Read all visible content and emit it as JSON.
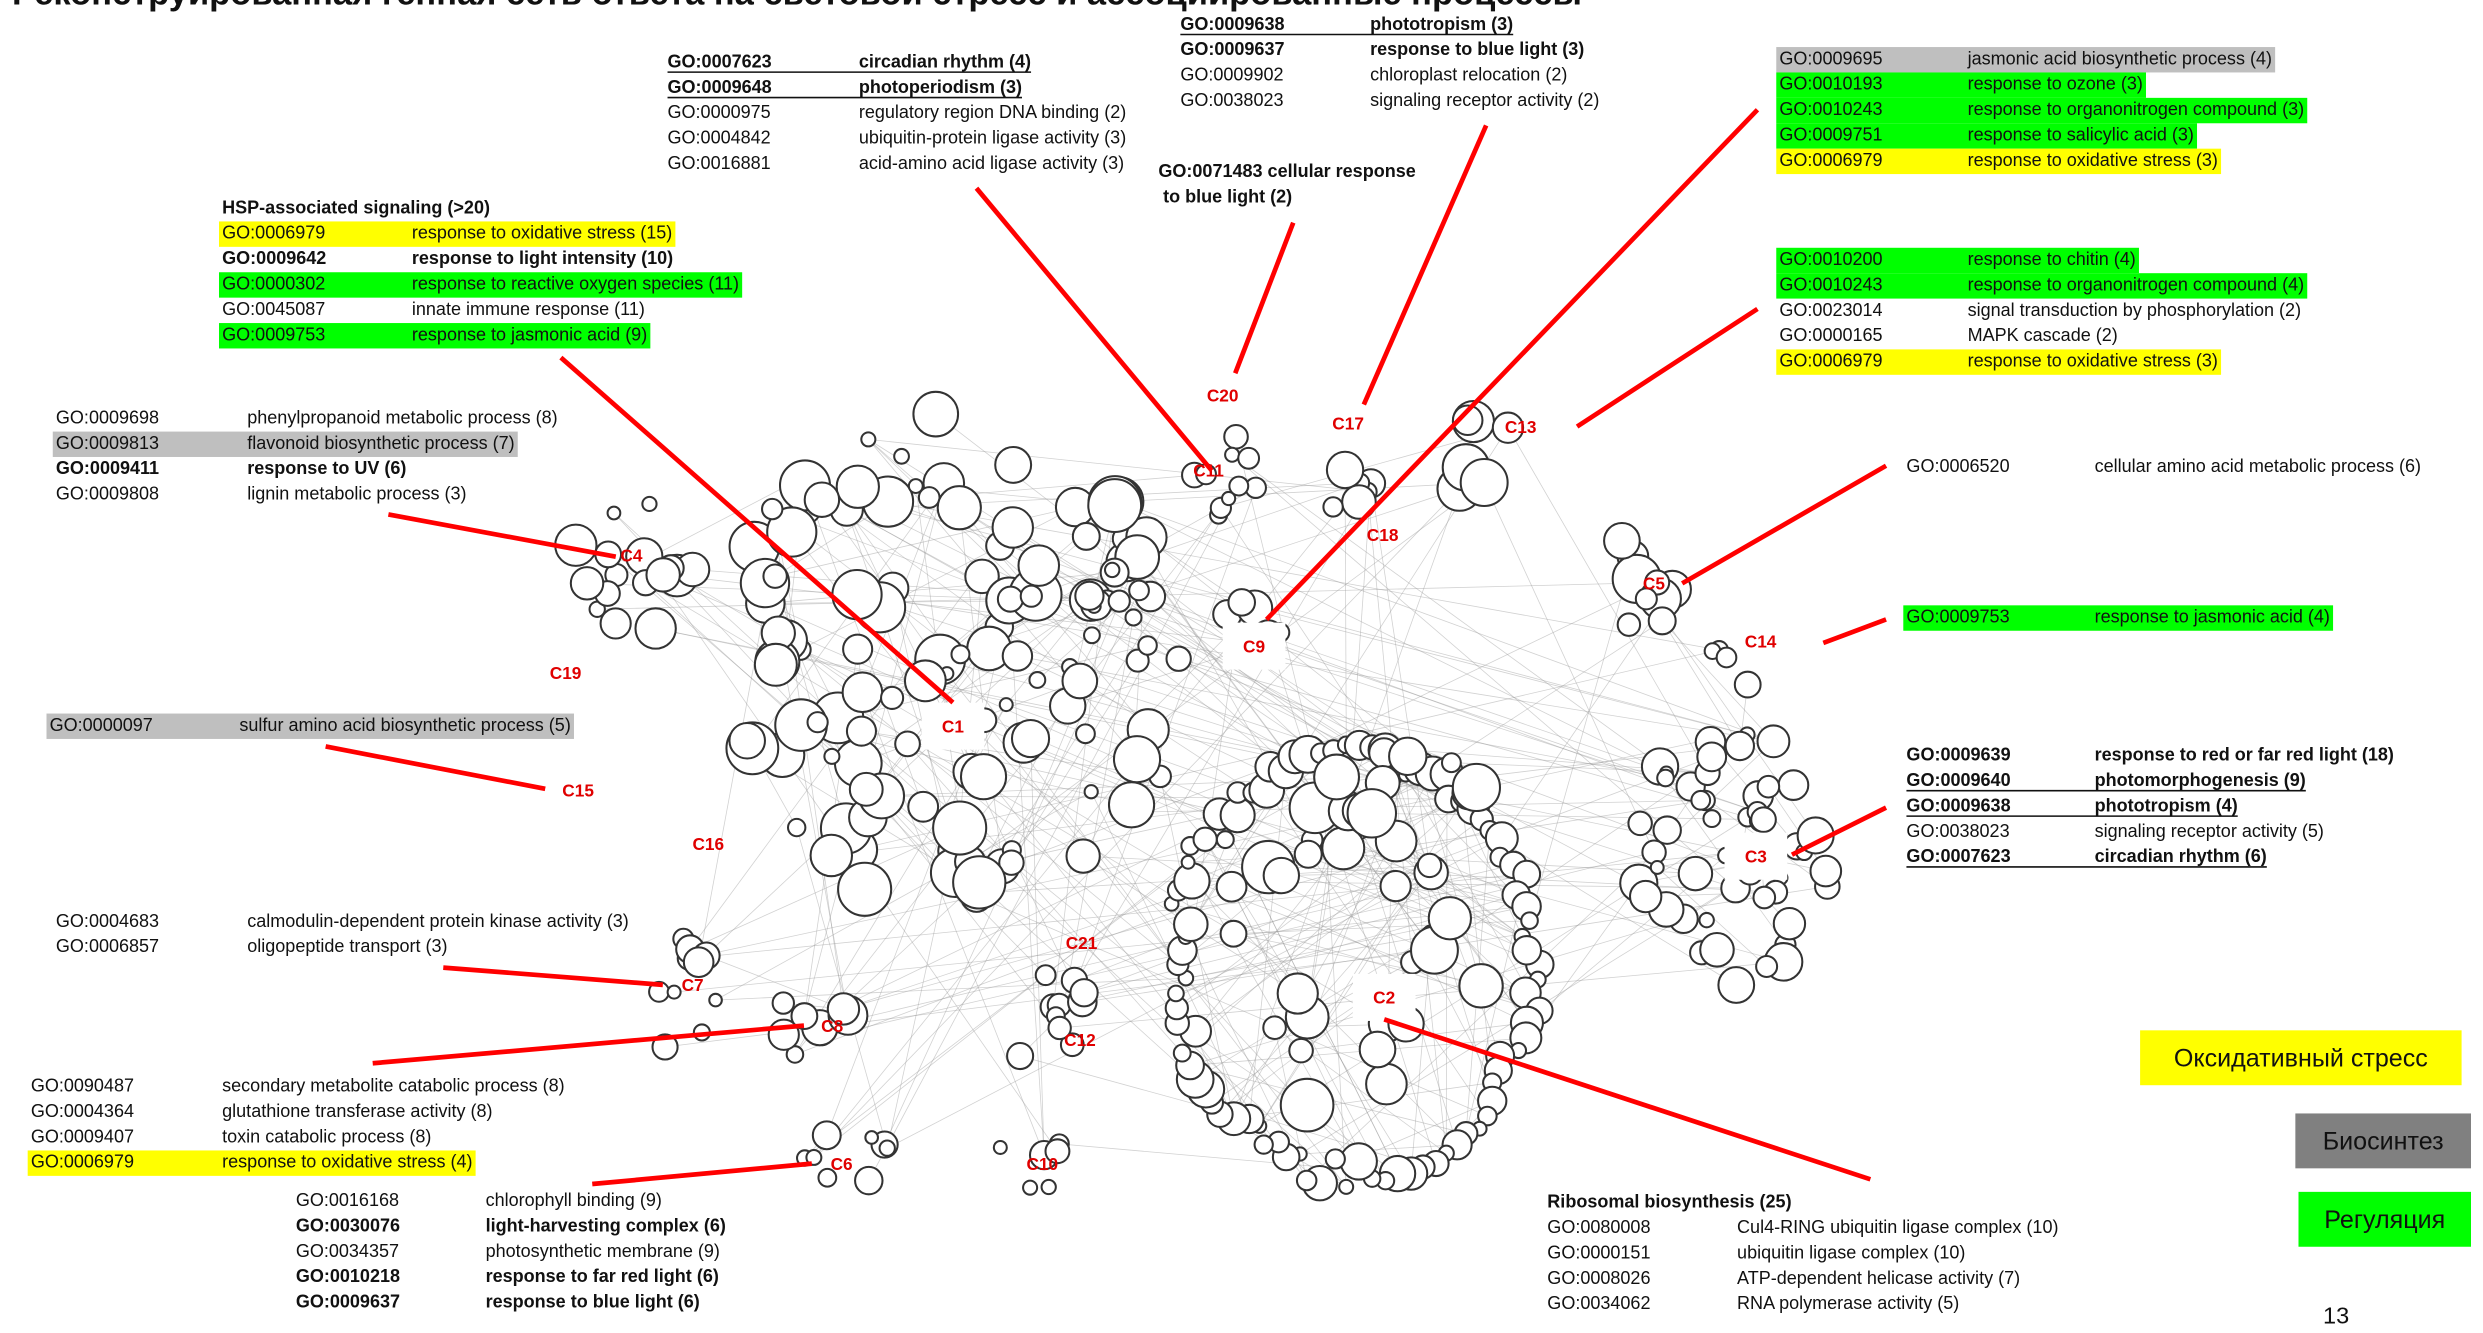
{
  "title": "Реконструированная генная сеть ответа на световой стресс и ассоциированные процессы",
  "blocks": [
    {
      "rows": [
        {
          "id": "GO:0007623",
          "term": "circadian rhythm (4)",
          "style": "bold-underline"
        },
        {
          "id": "GO:0009648",
          "term": "photoperiodism (3)",
          "style": "bold-underline"
        },
        {
          "id": "GO:0000975",
          "term": "regulatory region DNA binding (2)"
        },
        {
          "id": "GO:0004842",
          "term": "ubiquitin-protein ligase activity (3)"
        },
        {
          "id": "GO:0016881",
          "term": "acid-amino acid ligase activity (3)"
        }
      ]
    },
    {
      "rows": [
        {
          "id": "GO:0009638",
          "term": "phototropism (3)",
          "style": "bold-underline"
        },
        {
          "id": "GO:0009637",
          "term": "response to blue light  (3)",
          "style": "bold",
          "color": "#4472c4"
        },
        {
          "id": "GO:0009902",
          "term": "chloroplast relocation  (2)"
        },
        {
          "id": "GO:0038023",
          "term": "signaling receptor activity (2)"
        }
      ]
    },
    {
      "lines": [
        "GO:0071483  cellular response",
        "to blue light (2)"
      ],
      "style": "bold",
      "color": "#0070c0"
    },
    {
      "rows": [
        {
          "id": "GO:0009695",
          "term": "jasmonic acid biosynthetic process (4)",
          "highlight": "gray"
        },
        {
          "id": "GO:0010193",
          "term": "response to ozone (3)",
          "highlight": "green"
        },
        {
          "id": "GO:0010243",
          "term": "response to organonitrogen compound (3)",
          "highlight": "green"
        },
        {
          "id": "GO:0009751",
          "term": "response to salicylic acid (3)",
          "highlight": "green"
        },
        {
          "id": "GO:0006979",
          "term": "response to oxidative stress (3)",
          "highlight": "yellow"
        }
      ]
    },
    {
      "rows": [
        {
          "id": "GO:0010200",
          "term": "response to chitin (4)",
          "highlight": "green"
        },
        {
          "id": "GO:0010243",
          "term": "response to organonitrogen compound (4)",
          "highlight": "green"
        },
        {
          "id": "GO:0023014",
          "term": "signal transduction by phosphorylation (2)"
        },
        {
          "id": "GO:0000165",
          "term": "MAPK cascade (2)"
        },
        {
          "id": "GO:0006979",
          "term": "response to oxidative stress (3)",
          "highlight": "yellow"
        }
      ]
    },
    {
      "header": "HSP-associated signaling (>20)",
      "rows": [
        {
          "id": "GO:0006979",
          "term": "response to oxidative stress (15)",
          "highlight": "yellow"
        },
        {
          "id": "GO:0009642",
          "term": "response to light intensity (10)",
          "style": "bold"
        },
        {
          "id": "GO:0000302",
          "term": "response to reactive oxygen species (11)",
          "highlight": "green"
        },
        {
          "id": "GO:0045087",
          "term": "innate immune response (11)"
        },
        {
          "id": "GO:0009753",
          "term": "response to jasmonic acid (9)",
          "highlight": "green"
        }
      ]
    },
    {
      "rows": [
        {
          "id": "GO:0009698",
          "term": "phenylpropanoid metabolic process (8)"
        },
        {
          "id": "GO:0009813",
          "term": "flavonoid biosynthetic process (7)",
          "highlight": "gray"
        },
        {
          "id": "GO:0009411",
          "term": "response to UV (6)",
          "style": "bold",
          "color": "#7030a0"
        },
        {
          "id": "GO:0009808",
          "term": "lignin metabolic process (3)"
        }
      ]
    },
    {
      "rows": [
        {
          "id": "GO:0006520",
          "term": "cellular amino acid metabolic process (6)"
        }
      ]
    },
    {
      "rows": [
        {
          "id": "GO:0009753",
          "term": "response to jasmonic acid (4)",
          "highlight": "green"
        }
      ]
    },
    {
      "rows": [
        {
          "id": "GO:0000097",
          "term": "sulfur amino acid biosynthetic process (5)",
          "highlight": "gray"
        }
      ]
    },
    {
      "rows": [
        {
          "id": "GO:0009639",
          "term": "response to red or far red light (18)",
          "style": "bold",
          "color": "#e00000"
        },
        {
          "id": "GO:0009640",
          "term": "photomorphogenesis (9)",
          "style": "bold-underline"
        },
        {
          "id": "GO:0009638",
          "term": "phototropism (4)",
          "style": "bold-underline"
        },
        {
          "id": "GO:0038023",
          "term": "signaling receptor activity (5)"
        },
        {
          "id": "GO:0007623",
          "term": "circadian rhythm (6)",
          "style": "bold-underline"
        }
      ]
    },
    {
      "rows": [
        {
          "id": "GO:0004683",
          "term": "calmodulin-dependent protein kinase activity (3)"
        },
        {
          "id": "GO:0006857",
          "term": "oligopeptide transport (3)"
        }
      ]
    },
    {
      "rows": [
        {
          "id": "GO:0090487",
          "term": "secondary metabolite catabolic process (8)"
        },
        {
          "id": "GO:0004364",
          "term": "glutathione transferase activity (8)"
        },
        {
          "id": "GO:0009407",
          "term": "toxin catabolic process (8)"
        },
        {
          "id": "GO:0006979",
          "term": "response to oxidative stress (4)",
          "highlight": "yellow"
        }
      ]
    },
    {
      "rows": [
        {
          "id": "GO:0016168",
          "term": "chlorophyll binding (9)"
        },
        {
          "id": "GO:0030076",
          "term": "light-harvesting complex (6)",
          "style": "bold"
        },
        {
          "id": "GO:0034357",
          "term": "photosynthetic membrane (9)"
        },
        {
          "id": "GO:0010218",
          "term": "response to far red light (6)",
          "style": "bold",
          "color": "#e00000"
        },
        {
          "id": "GO:0009637",
          "term": "response to blue light  (6)",
          "style": "bold",
          "color": "#0070c0"
        }
      ]
    },
    {
      "header": "Ribosomal biosynthesis (25)",
      "rows": [
        {
          "id": "GO:0080008",
          "term": "Cul4-RING ubiquitin ligase complex (10)"
        },
        {
          "id": "GO:0000151",
          "term": "ubiquitin ligase complex (10)"
        },
        {
          "id": "GO:0008026",
          "term": "ATP-dependent helicase activity (7)"
        },
        {
          "id": "GO:0034062",
          "term": "RNA polymerase activity (5)"
        }
      ]
    }
  ],
  "clusters": [
    "C1",
    "C2",
    "C3",
    "C4",
    "C5",
    "C6",
    "C7",
    "C8",
    "C9",
    "C10",
    "C11",
    "C12",
    "C13",
    "C14",
    "C15",
    "C16",
    "C17",
    "C18",
    "C19",
    "C20",
    "C21"
  ],
  "legend": [
    {
      "label": "Оксидативный стресс",
      "highlight": "yellow"
    },
    {
      "label": "Биосинтез",
      "highlight": "gray"
    },
    {
      "label": "Регуляция",
      "highlight": "green"
    }
  ],
  "page_number": "13"
}
